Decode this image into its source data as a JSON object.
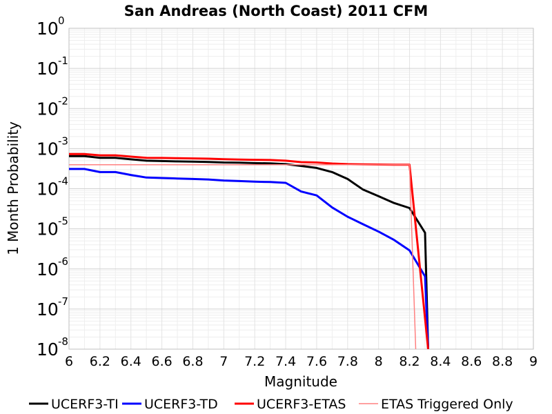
{
  "chart_data": {
    "type": "line",
    "title": "San Andreas (North Coast) 2011 CFM",
    "xlabel": "Magnitude",
    "ylabel": "1 Month Probability",
    "xlim": [
      6,
      9
    ],
    "ylim": [
      1e-08,
      1
    ],
    "yscale": "log",
    "grid": true,
    "legend_position": "bottom",
    "x_ticks": [
      "6",
      "6.2",
      "6.4",
      "6.6",
      "6.8",
      "7",
      "7.2",
      "7.4",
      "7.6",
      "7.8",
      "8",
      "8.2",
      "8.4",
      "8.6",
      "8.8",
      "9"
    ],
    "y_ticks": [
      {
        "base": "10",
        "exp": "0",
        "value": 1
      },
      {
        "base": "10",
        "exp": "-1",
        "value": 0.1
      },
      {
        "base": "10",
        "exp": "-2",
        "value": 0.01
      },
      {
        "base": "10",
        "exp": "-3",
        "value": 0.001
      },
      {
        "base": "10",
        "exp": "-4",
        "value": 0.0001
      },
      {
        "base": "10",
        "exp": "-5",
        "value": 1e-05
      },
      {
        "base": "10",
        "exp": "-6",
        "value": 1e-06
      },
      {
        "base": "10",
        "exp": "-7",
        "value": 1e-07
      },
      {
        "base": "10",
        "exp": "-8",
        "value": 1e-08
      }
    ],
    "series": [
      {
        "name": "UCERF3-TI",
        "color": "#000000",
        "width": 3,
        "points": [
          [
            6.0,
            0.00065
          ],
          [
            6.1,
            0.00065
          ],
          [
            6.2,
            0.00059
          ],
          [
            6.3,
            0.00059
          ],
          [
            6.4,
            0.00054
          ],
          [
            6.5,
            0.0005
          ],
          [
            6.6,
            0.00049
          ],
          [
            6.7,
            0.00048
          ],
          [
            6.8,
            0.000475
          ],
          [
            6.9,
            0.000465
          ],
          [
            7.0,
            0.00045
          ],
          [
            7.1,
            0.000445
          ],
          [
            7.2,
            0.000435
          ],
          [
            7.3,
            0.00043
          ],
          [
            7.4,
            0.00041
          ],
          [
            7.5,
            0.00037
          ],
          [
            7.6,
            0.00033
          ],
          [
            7.7,
            0.00026
          ],
          [
            7.8,
            0.000175
          ],
          [
            7.9,
            9.5e-05
          ],
          [
            8.0,
            6.5e-05
          ],
          [
            8.1,
            4.4e-05
          ],
          [
            8.2,
            3.3e-05
          ],
          [
            8.3,
            8e-06
          ],
          [
            8.32,
            1e-08
          ]
        ]
      },
      {
        "name": "UCERF3-TD",
        "color": "#0000ff",
        "width": 3,
        "points": [
          [
            6.0,
            0.00031
          ],
          [
            6.1,
            0.00031
          ],
          [
            6.2,
            0.00026
          ],
          [
            6.3,
            0.00026
          ],
          [
            6.4,
            0.00022
          ],
          [
            6.5,
            0.00019
          ],
          [
            6.6,
            0.000185
          ],
          [
            6.7,
            0.00018
          ],
          [
            6.8,
            0.000175
          ],
          [
            6.9,
            0.00017
          ],
          [
            7.0,
            0.00016
          ],
          [
            7.1,
            0.000155
          ],
          [
            7.2,
            0.00015
          ],
          [
            7.3,
            0.000147
          ],
          [
            7.4,
            0.00014
          ],
          [
            7.5,
            8.5e-05
          ],
          [
            7.6,
            6.8e-05
          ],
          [
            7.7,
            3.4e-05
          ],
          [
            7.8,
            2e-05
          ],
          [
            7.9,
            1.3e-05
          ],
          [
            8.0,
            8.5e-06
          ],
          [
            8.1,
            5.3e-06
          ],
          [
            8.2,
            2.9e-06
          ],
          [
            8.3,
            6.5e-07
          ],
          [
            8.32,
            1e-08
          ]
        ]
      },
      {
        "name": "UCERF3-ETAS",
        "color": "#ff0000",
        "width": 3,
        "points": [
          [
            6.0,
            0.00073
          ],
          [
            6.1,
            0.00073
          ],
          [
            6.2,
            0.00068
          ],
          [
            6.3,
            0.00068
          ],
          [
            6.4,
            0.00063
          ],
          [
            6.5,
            0.00059
          ],
          [
            6.6,
            0.000585
          ],
          [
            6.7,
            0.000575
          ],
          [
            6.8,
            0.00057
          ],
          [
            6.9,
            0.00056
          ],
          [
            7.0,
            0.000545
          ],
          [
            7.1,
            0.000535
          ],
          [
            7.2,
            0.000525
          ],
          [
            7.3,
            0.00052
          ],
          [
            7.4,
            0.0005
          ],
          [
            7.5,
            0.00046
          ],
          [
            7.6,
            0.00045
          ],
          [
            7.7,
            0.000425
          ],
          [
            7.8,
            0.00041
          ],
          [
            7.9,
            0.000405
          ],
          [
            8.0,
            0.0004
          ],
          [
            8.1,
            0.000395
          ],
          [
            8.2,
            0.000395
          ],
          [
            8.32,
            1e-08
          ]
        ]
      },
      {
        "name": "ETAS Triggered Only",
        "color": "#ff8080",
        "width": 1.5,
        "points": [
          [
            6.0,
            0.000395
          ],
          [
            8.2,
            0.000395
          ],
          [
            8.24,
            1e-08
          ]
        ]
      }
    ]
  }
}
